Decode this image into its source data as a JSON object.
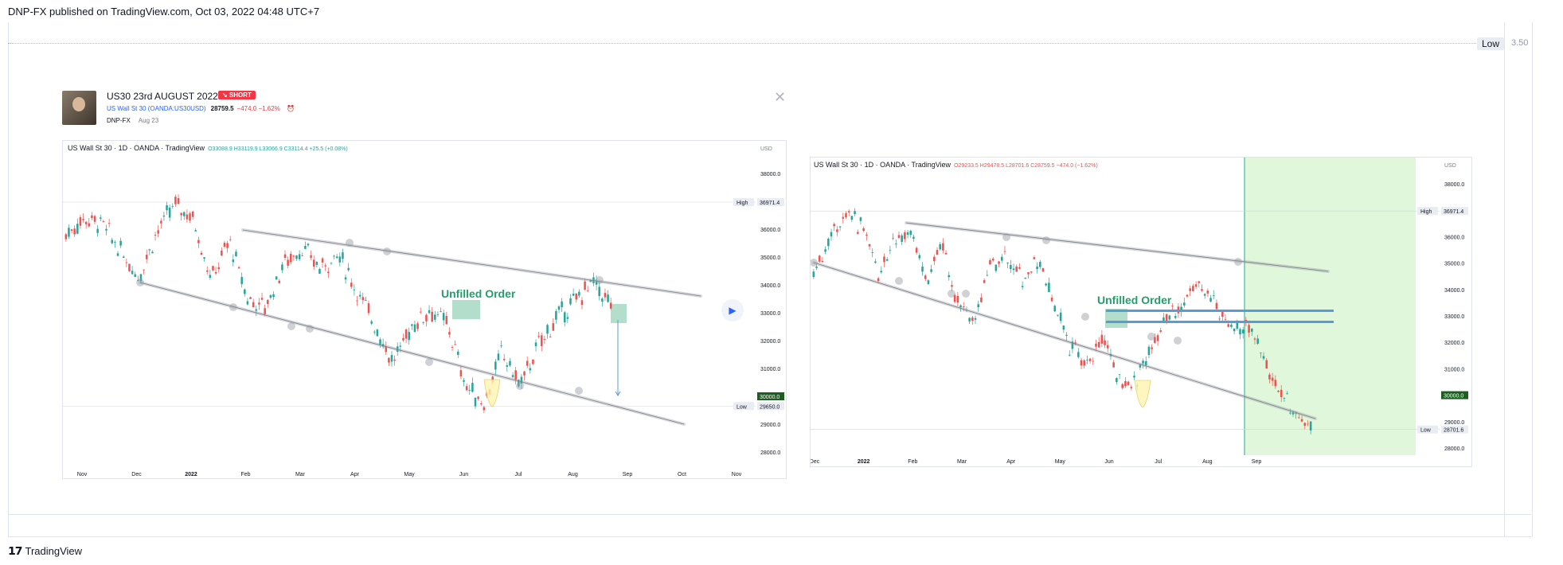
{
  "header": {
    "published": "DNP-FX published on TradingView.com, Oct 03, 2022 04:48 UTC+7"
  },
  "outer": {
    "low_label": "Low",
    "low_value": "3.50"
  },
  "idea": {
    "title": "US30 23rd AUGUST 2022",
    "badge": "↘ SHORT",
    "symbol": "US Wall St 30 (OANDA:US30USD)",
    "price": "28759.5",
    "change": "−474.0  −1.62%",
    "author": "DNP-FX",
    "date": "Aug 23"
  },
  "colors": {
    "up": "#26a69a",
    "down": "#ef5350",
    "channel": "#b2b5be",
    "annotation": "#22a06b",
    "zone_blue": "#5b9bd5",
    "projection": "#c8f0c0"
  },
  "charts": [
    {
      "title": "US Wall St 30 · 1D · OANDA · TradingView",
      "ohlc": "O33088.9 H33119.9 L33066.9 C33114.4 +25.5 (+0.08%)",
      "ohlc_color": "#26a69a",
      "currency": "USD",
      "annotation": "Unfilled Order",
      "high_label": "High",
      "high_value": "36971.4",
      "low_label": "Low",
      "low_value": "29650.0",
      "current_value": "30000.0",
      "price_ticks": [
        "38000.0",
        "37000.0",
        "36000.0",
        "35000.0",
        "34000.0",
        "33000.0",
        "32000.0",
        "31000.0",
        "30000.0",
        "29000.0",
        "28000.0"
      ],
      "time_ticks": [
        "Nov",
        "Dec",
        "2022",
        "Feb",
        "Mar",
        "Apr",
        "May",
        "Jun",
        "Jul",
        "Aug",
        "Sep",
        "Oct",
        "Nov"
      ]
    },
    {
      "title": "US Wall St 30 · 1D · OANDA · TradingView",
      "ohlc": "O29233.5 H29478.5 L28701.6 C28759.5 −474.0 (−1.62%)",
      "ohlc_color": "#ef5350",
      "currency": "USD",
      "annotation": "Unfilled Order",
      "high_label": "High",
      "high_value": "36971.4",
      "low_label": "Low",
      "low_value": "28701.6",
      "current_value": "30000.0",
      "price_ticks": [
        "38000.0",
        "37000.0",
        "36000.0",
        "35000.0",
        "34000.0",
        "33000.0",
        "32000.0",
        "31000.0",
        "30000.0",
        "29000.0",
        "28000.0"
      ],
      "time_ticks": [
        "Dec",
        "2022",
        "Feb",
        "Mar",
        "Apr",
        "May",
        "Jun",
        "Jul",
        "Aug",
        "Sep"
      ]
    }
  ],
  "footer": {
    "brand": "TradingView"
  }
}
